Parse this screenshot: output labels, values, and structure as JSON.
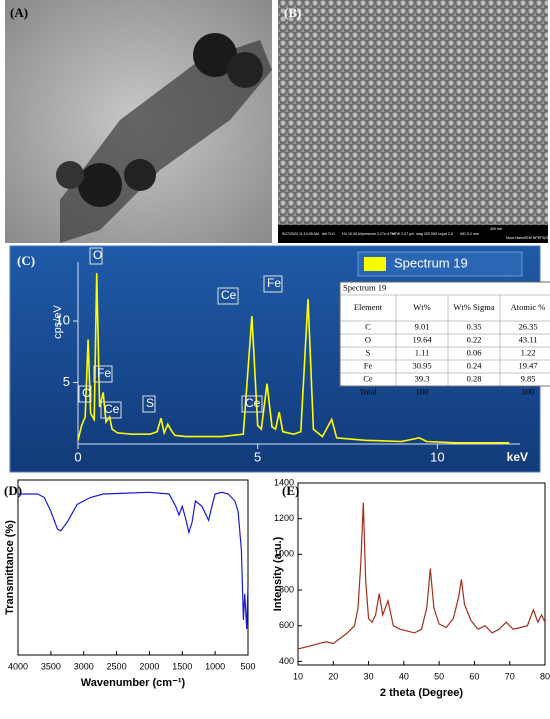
{
  "micrographs": [
    {
      "panel_label": "(A)"
    },
    {
      "panel_label": "(B)",
      "info": [
        "9/17/2022 11:14:05 AM",
        "det TLD",
        "HV 10.00 kV",
        "pressure 3.27e-4 Pa",
        "HFW 2.07 µm",
        "mag 200 000 x",
        "spot 2.5",
        "WD 5.2 mm",
        "400 nm",
        "Nova NanoSEM NPEF303"
      ]
    }
  ],
  "chart_data": [
    {
      "type": "line",
      "panel_label": "(C)",
      "y_label": "cps/eV",
      "x_unit": "keV",
      "x": [
        0,
        0.1,
        0.2,
        0.28,
        0.35,
        0.45,
        0.52,
        0.6,
        0.7,
        0.78,
        0.88,
        0.95,
        1.1,
        1.5,
        2.0,
        2.2,
        2.31,
        2.4,
        2.5,
        2.62,
        2.7,
        3.0,
        4.0,
        4.6,
        4.84,
        5.0,
        5.1,
        5.26,
        5.4,
        5.5,
        5.6,
        5.7,
        6.0,
        6.2,
        6.4,
        6.55,
        6.8,
        7.06,
        7.2,
        8.0,
        9.0,
        9.5,
        9.7,
        10.5,
        11.5,
        12.0
      ],
      "series": [
        {
          "name": "Spectrum 19",
          "color": "#ffff00",
          "values": [
            0.3,
            1.5,
            2.2,
            8.5,
            2.5,
            2.0,
            13.9,
            3.0,
            4.2,
            1.8,
            2.2,
            1.2,
            0.9,
            0.8,
            0.8,
            1.0,
            2.1,
            0.9,
            1.6,
            1.0,
            0.7,
            0.6,
            0.6,
            0.8,
            10.4,
            1.5,
            1.2,
            4.9,
            1.4,
            1.2,
            2.6,
            1.0,
            0.8,
            1.0,
            11.8,
            1.2,
            0.6,
            2.0,
            0.5,
            0.3,
            0.2,
            0.5,
            0.2,
            0.1,
            0.1,
            0.1
          ]
        }
      ],
      "peak_labels": [
        "C",
        "O",
        "Fe",
        "Ce",
        "S",
        "Ce",
        "Ce",
        "Fe"
      ],
      "xlim": [
        0,
        12.3
      ],
      "xticks": [
        0,
        5,
        10
      ],
      "ylim": [
        0,
        14.8
      ],
      "yticks": [
        5,
        10
      ],
      "table": {
        "title": "Spectrum 19",
        "header": [
          "Element",
          "Wt%",
          "Wt% Sigma",
          "Atomic %"
        ],
        "rows": [
          [
            "C",
            9.01,
            0.35,
            26.35
          ],
          [
            "O",
            19.64,
            0.22,
            43.11
          ],
          [
            "S",
            1.11,
            0.06,
            1.22
          ],
          [
            "Fe",
            30.95,
            0.24,
            19.47
          ],
          [
            "Ce",
            39.3,
            0.28,
            9.85
          ],
          [
            "Total",
            100,
            "",
            100
          ]
        ]
      }
    },
    {
      "type": "line",
      "panel_label": "(D)",
      "x_label": "Wavenumber (cm⁻¹)",
      "y_label": "Transmittance (%)",
      "color": "#1a1acc",
      "x": [
        4000,
        3700,
        3600,
        3500,
        3400,
        3350,
        3250,
        3100,
        2900,
        2700,
        2000,
        1700,
        1600,
        1550,
        1500,
        1450,
        1400,
        1350,
        1300,
        1200,
        1100,
        1050,
        1000,
        900,
        800,
        700,
        650,
        600,
        570,
        550,
        520,
        500
      ],
      "values": [
        92,
        92,
        90,
        82,
        72,
        71,
        76,
        86,
        90,
        92,
        93,
        92,
        85,
        80,
        85,
        78,
        70,
        76,
        88,
        85,
        77,
        85,
        92,
        93,
        92,
        88,
        82,
        60,
        20,
        35,
        15,
        40
      ],
      "xlim": [
        4000,
        500
      ],
      "xticks": [
        4000,
        3500,
        3000,
        2500,
        2000,
        1500,
        1000,
        500
      ],
      "ylim": [
        0,
        100
      ]
    },
    {
      "type": "line",
      "panel_label": "(E)",
      "x_label": "2 theta (Degree)",
      "y_label": "Intensity (a.u.)",
      "color": "#a0301c",
      "x": [
        10,
        12,
        14,
        16,
        18,
        20,
        22,
        24,
        25,
        26,
        27,
        27.8,
        28.5,
        29.2,
        30,
        31,
        32,
        33,
        34,
        35.5,
        37,
        39,
        41,
        43,
        45,
        46.5,
        47.5,
        48.5,
        50,
        52,
        54,
        55.5,
        56.3,
        57.2,
        59,
        61,
        63,
        65,
        67,
        69,
        71,
        73,
        75,
        76.7,
        78,
        79,
        80
      ],
      "values": [
        470,
        480,
        490,
        500,
        510,
        500,
        530,
        560,
        580,
        600,
        700,
        950,
        1290,
        850,
        640,
        620,
        660,
        780,
        660,
        740,
        600,
        580,
        570,
        560,
        580,
        700,
        920,
        700,
        610,
        590,
        640,
        760,
        860,
        720,
        630,
        580,
        600,
        560,
        580,
        620,
        580,
        590,
        600,
        690,
        620,
        660,
        620
      ],
      "xlim": [
        10,
        80
      ],
      "xticks": [
        10,
        20,
        30,
        40,
        50,
        60,
        70,
        80
      ],
      "ylim": [
        380,
        1400
      ],
      "yticks": [
        400,
        600,
        800,
        1000,
        1200,
        1400
      ]
    }
  ]
}
